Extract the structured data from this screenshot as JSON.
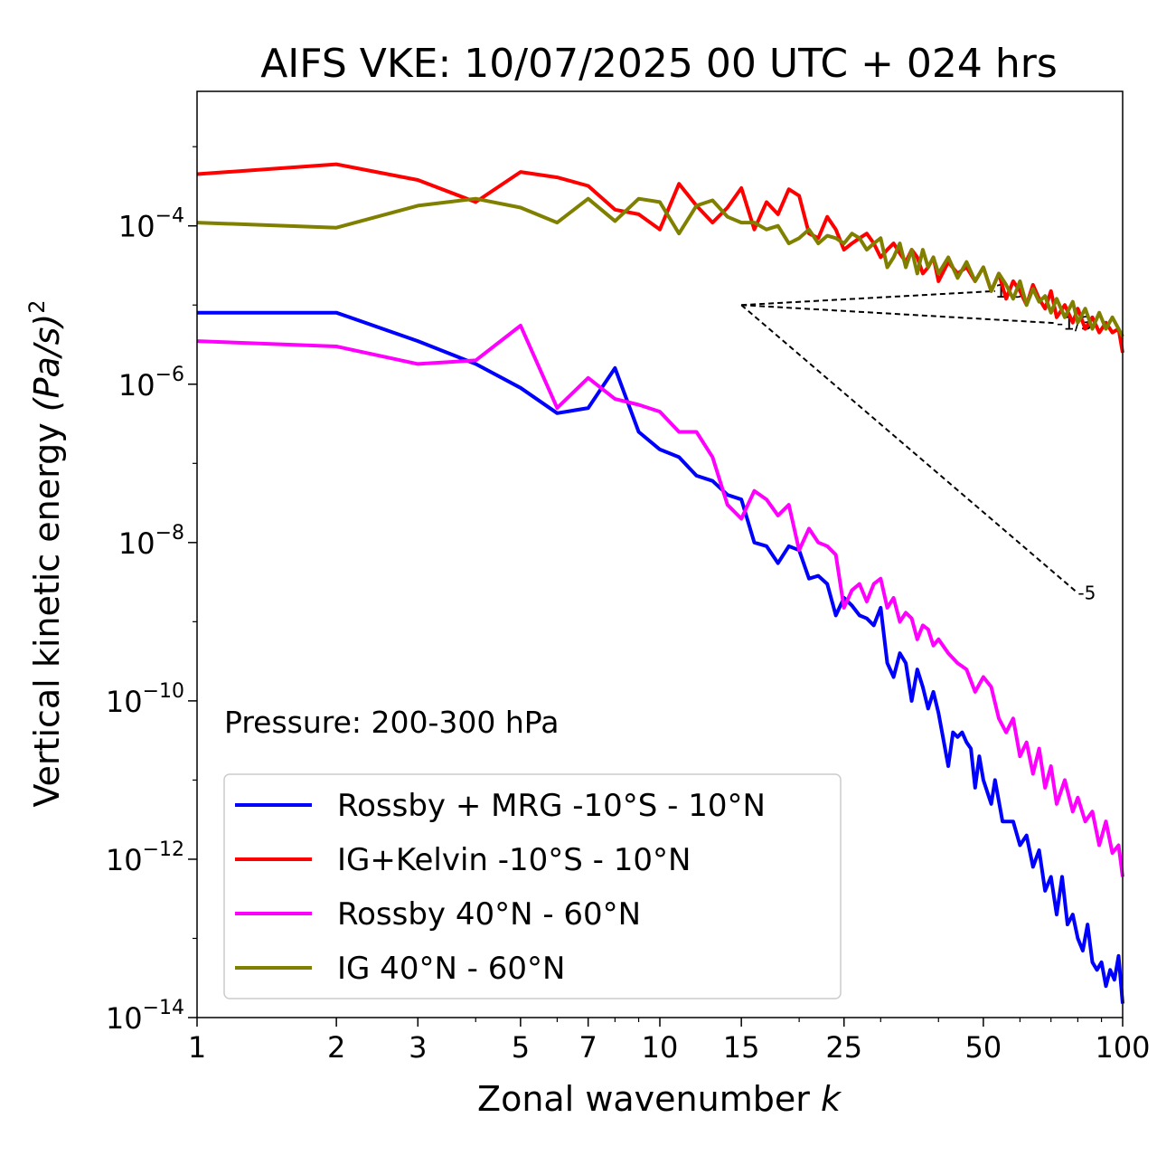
{
  "chart_data": {
    "type": "line",
    "title": "AIFS VKE: 10/07/2025 00 UTC + 024 hrs",
    "xlabel_prefix": "Zonal wavenumber ",
    "xlabel_var": "k",
    "ylabel_prefix": "Vertical kinetic energy ",
    "ylabel_unit": "(Pa/s)",
    "ylabel_power": "2",
    "xscale": "log",
    "yscale": "log",
    "xlim": [
      1,
      100
    ],
    "ylim": [
      1e-14,
      0.005
    ],
    "x_ticks": [
      {
        "value": 1,
        "label": "1"
      },
      {
        "value": 2,
        "label": "2"
      },
      {
        "value": 3,
        "label": "3"
      },
      {
        "value": 5,
        "label": "5"
      },
      {
        "value": 7,
        "label": "7"
      },
      {
        "value": 10,
        "label": "10"
      },
      {
        "value": 15,
        "label": "15"
      },
      {
        "value": 25,
        "label": "25"
      },
      {
        "value": 50,
        "label": "50"
      },
      {
        "value": 100,
        "label": "100"
      }
    ],
    "y_ticks": [
      {
        "value": 0.0001,
        "base": "10",
        "exp": "−4"
      },
      {
        "value": 1e-06,
        "base": "10",
        "exp": "−6"
      },
      {
        "value": 1e-08,
        "base": "10",
        "exp": "−8"
      },
      {
        "value": 1e-10,
        "base": "10",
        "exp": "−10"
      },
      {
        "value": 1e-12,
        "base": "10",
        "exp": "−12"
      },
      {
        "value": 1e-14,
        "base": "10",
        "exp": "−14"
      }
    ],
    "annotation": "Pressure: 200-300 hPa",
    "grid": false,
    "legend_position": "lower-left",
    "slope_lines": [
      {
        "label": "1/3",
        "from": [
          15,
          1e-05
        ],
        "to": [
          53,
          1.5e-05
        ]
      },
      {
        "label": "-1/3",
        "from": [
          15,
          1e-05
        ],
        "to": [
          72,
          5.9e-06
        ]
      },
      {
        "label": "-5",
        "from": [
          15,
          1e-05
        ],
        "to": [
          80,
          2.3e-09
        ]
      }
    ],
    "series": [
      {
        "name": "Rossby + MRG -10°S - 10°N",
        "color": "#0000ff",
        "points": [
          [
            1,
            8e-06
          ],
          [
            2,
            8e-06
          ],
          [
            3,
            3.5e-06
          ],
          [
            4,
            1.8e-06
          ],
          [
            5,
            9e-07
          ],
          [
            6,
            4.3e-07
          ],
          [
            7,
            5e-07
          ],
          [
            8,
            1.6e-06
          ],
          [
            9,
            2.5e-07
          ],
          [
            10,
            1.5e-07
          ],
          [
            11,
            1.2e-07
          ],
          [
            12,
            7e-08
          ],
          [
            13,
            6e-08
          ],
          [
            14,
            4e-08
          ],
          [
            15,
            3.5e-08
          ],
          [
            16,
            1e-08
          ],
          [
            17,
            9e-09
          ],
          [
            18,
            5.5e-09
          ],
          [
            19,
            9e-09
          ],
          [
            20,
            8e-09
          ],
          [
            21,
            3.5e-09
          ],
          [
            22,
            3.8e-09
          ],
          [
            23,
            3e-09
          ],
          [
            24,
            1.2e-09
          ],
          [
            25,
            2e-09
          ],
          [
            26,
            1.6e-09
          ],
          [
            27,
            1.2e-09
          ],
          [
            28,
            1.1e-09
          ],
          [
            29,
            9e-10
          ],
          [
            30,
            1.5e-09
          ],
          [
            31,
            3e-10
          ],
          [
            32,
            2e-10
          ],
          [
            33,
            4e-10
          ],
          [
            34,
            3e-10
          ],
          [
            35,
            1e-10
          ],
          [
            36,
            2.5e-10
          ],
          [
            37,
            1.5e-10
          ],
          [
            38,
            8e-11
          ],
          [
            39,
            1.3e-10
          ],
          [
            40,
            7e-11
          ],
          [
            42,
            1.5e-11
          ],
          [
            43,
            4e-11
          ],
          [
            44,
            3.5e-11
          ],
          [
            45,
            4e-11
          ],
          [
            46,
            3e-11
          ],
          [
            47,
            2.5e-11
          ],
          [
            48,
            8e-12
          ],
          [
            49,
            2e-11
          ],
          [
            50,
            1e-11
          ],
          [
            52,
            5e-12
          ],
          [
            53,
            1e-11
          ],
          [
            55,
            3e-12
          ],
          [
            58,
            3e-12
          ],
          [
            60,
            1.5e-12
          ],
          [
            62,
            2e-12
          ],
          [
            64,
            8e-13
          ],
          [
            66,
            1.3e-12
          ],
          [
            68,
            4e-13
          ],
          [
            70,
            6e-13
          ],
          [
            72,
            2e-13
          ],
          [
            74,
            6e-13
          ],
          [
            76,
            1.5e-13
          ],
          [
            78,
            2e-13
          ],
          [
            80,
            1e-13
          ],
          [
            82,
            7e-14
          ],
          [
            84,
            1.5e-13
          ],
          [
            86,
            5e-14
          ],
          [
            88,
            4e-14
          ],
          [
            90,
            5e-14
          ],
          [
            92,
            2.5e-14
          ],
          [
            94,
            4e-14
          ],
          [
            96,
            3e-14
          ],
          [
            98,
            6e-14
          ],
          [
            100,
            1.5e-14
          ]
        ]
      },
      {
        "name": "IG+Kelvin -10°S - 10°N",
        "color": "#ff0000",
        "points": [
          [
            1,
            0.00045
          ],
          [
            2,
            0.0006
          ],
          [
            3,
            0.00038
          ],
          [
            4,
            0.0002
          ],
          [
            5,
            0.00048
          ],
          [
            6,
            0.00041
          ],
          [
            7,
            0.00032
          ],
          [
            8,
            0.00016
          ],
          [
            9,
            0.00014
          ],
          [
            10,
            9e-05
          ],
          [
            11,
            0.00034
          ],
          [
            12,
            0.00018
          ],
          [
            13,
            0.00011
          ],
          [
            14,
            0.00017
          ],
          [
            15,
            0.0003
          ],
          [
            16,
            9e-05
          ],
          [
            17,
            0.0002
          ],
          [
            18,
            0.00014
          ],
          [
            19,
            0.00029
          ],
          [
            20,
            0.00024
          ],
          [
            21,
            8e-05
          ],
          [
            22,
            7e-05
          ],
          [
            23,
            0.00013
          ],
          [
            24,
            9e-05
          ],
          [
            25,
            5e-05
          ],
          [
            26,
            6e-05
          ],
          [
            27,
            7e-05
          ],
          [
            28,
            8e-05
          ],
          [
            29,
            6e-05
          ],
          [
            30,
            4e-05
          ],
          [
            31,
            5e-05
          ],
          [
            32,
            6e-05
          ],
          [
            33,
            4.5e-05
          ],
          [
            34,
            3.5e-05
          ],
          [
            35,
            5e-05
          ],
          [
            36,
            4e-05
          ],
          [
            37,
            2.5e-05
          ],
          [
            38,
            3e-05
          ],
          [
            39,
            4e-05
          ],
          [
            40,
            2e-05
          ],
          [
            42,
            3.5e-05
          ],
          [
            44,
            2.5e-05
          ],
          [
            46,
            3e-05
          ],
          [
            48,
            2e-05
          ],
          [
            50,
            3e-05
          ],
          [
            52,
            1.5e-05
          ],
          [
            54,
            2.5e-05
          ],
          [
            56,
            1.2e-05
          ],
          [
            58,
            2e-05
          ],
          [
            60,
            1.5e-05
          ],
          [
            62,
            1e-05
          ],
          [
            64,
            1.8e-05
          ],
          [
            66,
            1.2e-05
          ],
          [
            68,
            9e-06
          ],
          [
            70,
            1.5e-05
          ],
          [
            72,
            7e-06
          ],
          [
            75,
            1e-05
          ],
          [
            78,
            6e-06
          ],
          [
            80,
            9e-06
          ],
          [
            83,
            5e-06
          ],
          [
            86,
            7e-06
          ],
          [
            89,
            4.5e-06
          ],
          [
            92,
            6e-06
          ],
          [
            95,
            4.5e-06
          ],
          [
            98,
            5e-06
          ],
          [
            100,
            2.5e-06
          ]
        ]
      },
      {
        "name": "Rossby 40°N - 60°N",
        "color": "#ff00ff",
        "points": [
          [
            1,
            3.5e-06
          ],
          [
            2,
            3e-06
          ],
          [
            3,
            1.8e-06
          ],
          [
            4,
            2e-06
          ],
          [
            5,
            5.5e-06
          ],
          [
            6,
            5e-07
          ],
          [
            7,
            1.2e-06
          ],
          [
            8,
            6.5e-07
          ],
          [
            9,
            5.5e-07
          ],
          [
            10,
            4.5e-07
          ],
          [
            11,
            2.5e-07
          ],
          [
            12,
            2.5e-07
          ],
          [
            13,
            1.2e-07
          ],
          [
            14,
            3e-08
          ],
          [
            15,
            2e-08
          ],
          [
            16,
            4.5e-08
          ],
          [
            17,
            3.5e-08
          ],
          [
            18,
            2.2e-08
          ],
          [
            19,
            3e-08
          ],
          [
            20,
            8e-09
          ],
          [
            21,
            1.5e-08
          ],
          [
            22,
            1e-08
          ],
          [
            23,
            9e-09
          ],
          [
            24,
            7e-09
          ],
          [
            25,
            1.5e-09
          ],
          [
            26,
            2.5e-09
          ],
          [
            27,
            3e-09
          ],
          [
            28,
            1.8e-09
          ],
          [
            29,
            3e-09
          ],
          [
            30,
            3.5e-09
          ],
          [
            31,
            1.5e-09
          ],
          [
            32,
            2e-09
          ],
          [
            33,
            1e-09
          ],
          [
            34,
            1.3e-09
          ],
          [
            35,
            1.1e-09
          ],
          [
            36,
            6e-10
          ],
          [
            37,
            9e-10
          ],
          [
            38,
            8e-10
          ],
          [
            39,
            5e-10
          ],
          [
            40,
            6e-10
          ],
          [
            42,
            4e-10
          ],
          [
            44,
            3e-10
          ],
          [
            46,
            2.5e-10
          ],
          [
            48,
            1.3e-10
          ],
          [
            50,
            2e-10
          ],
          [
            52,
            1.5e-10
          ],
          [
            54,
            6e-11
          ],
          [
            56,
            4e-11
          ],
          [
            58,
            6e-11
          ],
          [
            60,
            2e-11
          ],
          [
            62,
            3e-11
          ],
          [
            64,
            1.2e-11
          ],
          [
            66,
            2.5e-11
          ],
          [
            68,
            8e-12
          ],
          [
            70,
            1.5e-11
          ],
          [
            72,
            5e-12
          ],
          [
            75,
            1e-11
          ],
          [
            78,
            4e-12
          ],
          [
            80,
            6e-12
          ],
          [
            83,
            3e-12
          ],
          [
            86,
            4e-12
          ],
          [
            89,
            1.5e-12
          ],
          [
            92,
            3e-12
          ],
          [
            95,
            1.2e-12
          ],
          [
            98,
            1.5e-12
          ],
          [
            100,
            6e-13
          ]
        ]
      },
      {
        "name": "IG 40°N - 60°N",
        "color": "#808000",
        "points": [
          [
            1,
            0.00011
          ],
          [
            2,
            9.5e-05
          ],
          [
            3,
            0.00018
          ],
          [
            4,
            0.00022
          ],
          [
            5,
            0.00017
          ],
          [
            6,
            0.00011
          ],
          [
            7,
            0.00022
          ],
          [
            8,
            0.000115
          ],
          [
            9,
            0.00022
          ],
          [
            10,
            0.0002
          ],
          [
            11,
            8e-05
          ],
          [
            12,
            0.00018
          ],
          [
            13,
            0.00021
          ],
          [
            14,
            0.00013
          ],
          [
            15,
            0.00011
          ],
          [
            16,
            0.00011
          ],
          [
            17,
            9e-05
          ],
          [
            18,
            0.0001
          ],
          [
            19,
            6e-05
          ],
          [
            20,
            7e-05
          ],
          [
            21,
            9e-05
          ],
          [
            22,
            6e-05
          ],
          [
            23,
            7.5e-05
          ],
          [
            24,
            7e-05
          ],
          [
            25,
            6e-05
          ],
          [
            26,
            8e-05
          ],
          [
            27,
            7e-05
          ],
          [
            28,
            5e-05
          ],
          [
            29,
            6e-05
          ],
          [
            30,
            7e-05
          ],
          [
            31,
            3e-05
          ],
          [
            32,
            4e-05
          ],
          [
            33,
            6e-05
          ],
          [
            34,
            3e-05
          ],
          [
            35,
            5e-05
          ],
          [
            36,
            2.5e-05
          ],
          [
            37,
            5e-05
          ],
          [
            38,
            3e-05
          ],
          [
            39,
            4e-05
          ],
          [
            40,
            2.5e-05
          ],
          [
            42,
            4e-05
          ],
          [
            44,
            2.2e-05
          ],
          [
            46,
            3.5e-05
          ],
          [
            48,
            2e-05
          ],
          [
            50,
            3e-05
          ],
          [
            52,
            1.5e-05
          ],
          [
            54,
            2.5e-05
          ],
          [
            56,
            1.8e-05
          ],
          [
            58,
            1.2e-05
          ],
          [
            60,
            2e-05
          ],
          [
            62,
            1e-05
          ],
          [
            64,
            1.6e-05
          ],
          [
            66,
            1.1e-05
          ],
          [
            68,
            1.3e-05
          ],
          [
            70,
            8e-06
          ],
          [
            72,
            1.2e-05
          ],
          [
            75,
            7e-06
          ],
          [
            78,
            1.1e-05
          ],
          [
            80,
            6e-06
          ],
          [
            83,
            9e-06
          ],
          [
            86,
            5e-06
          ],
          [
            89,
            8e-06
          ],
          [
            92,
            5e-06
          ],
          [
            95,
            7e-06
          ],
          [
            98,
            5e-06
          ],
          [
            100,
            4e-06
          ]
        ]
      }
    ]
  }
}
